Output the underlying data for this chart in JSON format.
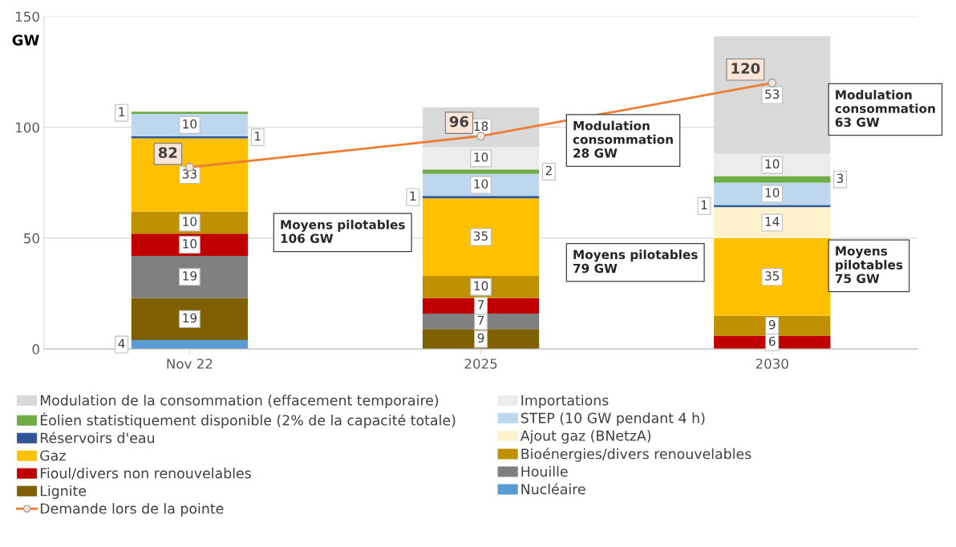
{
  "chart_data": {
    "type": "bar",
    "stacked": true,
    "ylabel": "GW",
    "categories": [
      "Nov 22",
      "2025",
      "2030"
    ],
    "ylim": [
      0,
      150
    ],
    "yticks": [
      0,
      50,
      100,
      150
    ],
    "grid": "y",
    "legend": "bottom",
    "series": [
      {
        "name": "Nucléaire",
        "color": "#5b9bd5",
        "values": [
          4,
          null,
          null
        ],
        "value_labels": [
          "4",
          null,
          null
        ]
      },
      {
        "name": "Lignite",
        "color": "#7f6000",
        "values": [
          19,
          9,
          null
        ],
        "value_labels": [
          "19",
          "9",
          null
        ]
      },
      {
        "name": "Houille",
        "color": "#808080",
        "values": [
          19,
          7,
          null
        ],
        "value_labels": [
          "19",
          "7",
          null
        ]
      },
      {
        "name": "Fioul/divers non renouvelables",
        "color": "#c00000",
        "values": [
          10,
          7,
          6
        ],
        "value_labels": [
          "10",
          "7",
          "6"
        ]
      },
      {
        "name": "Bioénergies/divers renouvelables",
        "color": "#bf9000",
        "values": [
          10,
          10,
          9
        ],
        "value_labels": [
          "10",
          "10",
          "9"
        ]
      },
      {
        "name": "Gaz",
        "color": "#ffc000",
        "values": [
          33,
          35,
          35
        ],
        "value_labels": [
          "33",
          "35",
          "35"
        ]
      },
      {
        "name": "Ajout gaz (BNetzA)",
        "color": "#fff2cc",
        "values": [
          null,
          null,
          14
        ],
        "value_labels": [
          null,
          null,
          "14"
        ]
      },
      {
        "name": "Réservoirs d'eau",
        "color": "#2f5597",
        "values": [
          1,
          1,
          1
        ],
        "value_labels": [
          "1",
          "1",
          "1"
        ]
      },
      {
        "name": "STEP (10 GW pendant 4 h)",
        "color": "#bdd7ee",
        "values": [
          10,
          10,
          10
        ],
        "value_labels": [
          "10",
          "10",
          "10"
        ]
      },
      {
        "name": "Éolien statistiquement disponible (2% de la capacité totale)",
        "color": "#70ad47",
        "values": [
          1,
          2,
          3
        ],
        "value_labels": [
          "1",
          "2",
          "3"
        ]
      },
      {
        "name": "Importations",
        "color": "#ececec",
        "values": [
          null,
          10,
          10
        ],
        "value_labels": [
          null,
          "10",
          "10"
        ]
      },
      {
        "name": "Modulation de la consommation (effacement temporaire)",
        "color": "#d9d9d9",
        "values": [
          null,
          18,
          53
        ],
        "value_labels": [
          null,
          "18",
          "53"
        ]
      },
      {
        "name": "Demande lors de la pointe",
        "type": "line",
        "color": "#ed7d31",
        "marker": "circle",
        "values": [
          82,
          96,
          120
        ],
        "value_labels": [
          "82",
          "96",
          "120"
        ]
      }
    ],
    "annotations": [
      "Moyens pilotables\n106 GW",
      "Moyens pilotables\n79 GW",
      "Modulation\nconsommation\n28 GW",
      "Moyens\npilotables\n75 GW",
      "Modulation\nconsommation\n63 GW"
    ]
  }
}
